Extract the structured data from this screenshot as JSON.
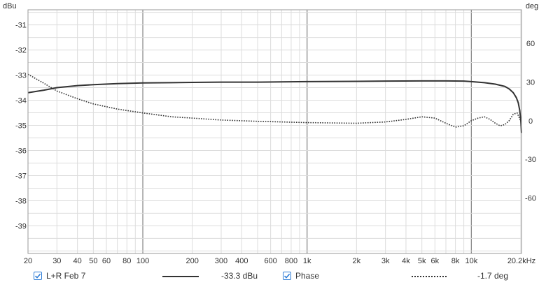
{
  "chart_data": {
    "type": "line",
    "xscale": "log",
    "xlim": [
      20,
      20200
    ],
    "x_ticks": [
      20,
      30,
      40,
      50,
      60,
      80,
      100,
      200,
      300,
      400,
      600,
      800,
      1000,
      2000,
      3000,
      4000,
      5000,
      6000,
      8000,
      10000,
      20200
    ],
    "x_tick_labels": [
      "20",
      "30",
      "40",
      "50",
      "60",
      "80",
      "100",
      "200",
      "300",
      "400",
      "600",
      "800",
      "1k",
      "2k",
      "3k",
      "4k",
      "5k",
      "6k",
      "8k",
      "10k",
      "20.2kHz"
    ],
    "y_left": {
      "label": "dBu",
      "ylim": [
        -40.1,
        -30.4
      ],
      "ticks": [
        -31,
        -32,
        -33,
        -34,
        -35,
        -36,
        -37,
        -38,
        -39
      ],
      "tick_labels": [
        "-31",
        "-32",
        "-33",
        "-34",
        "-35",
        "-36",
        "-37",
        "-38",
        "-39"
      ]
    },
    "y_right": {
      "label": "deg",
      "ylim": [
        -103,
        86
      ],
      "ticks": [
        60,
        30,
        0,
        -30,
        -60
      ],
      "tick_labels": [
        "60",
        "30",
        "0",
        "-30",
        "-60"
      ]
    },
    "grid": true,
    "series": [
      {
        "name": "L+R Feb 7",
        "axis": "left",
        "color": "#333333",
        "style": "solid",
        "x": [
          20,
          25,
          30,
          40,
          50,
          70,
          100,
          150,
          200,
          300,
          500,
          700,
          1000,
          2000,
          3000,
          5000,
          7000,
          9000,
          10000,
          12000,
          14000,
          16000,
          17000,
          18000,
          18800,
          19300,
          19700,
          20000,
          20200
        ],
        "y": [
          -33.7,
          -33.6,
          -33.5,
          -33.42,
          -33.38,
          -33.34,
          -33.31,
          -33.3,
          -33.29,
          -33.28,
          -33.28,
          -33.27,
          -33.26,
          -33.25,
          -33.24,
          -33.23,
          -33.23,
          -33.24,
          -33.26,
          -33.3,
          -33.36,
          -33.45,
          -33.55,
          -33.7,
          -33.9,
          -34.1,
          -34.4,
          -34.8,
          -35.3
        ]
      },
      {
        "name": "Phase",
        "axis": "right",
        "color": "#333333",
        "style": "dotted",
        "x": [
          20,
          25,
          30,
          40,
          50,
          70,
          100,
          150,
          200,
          300,
          500,
          1000,
          2000,
          3000,
          4000,
          5000,
          6000,
          7000,
          8000,
          9000,
          10000,
          11000,
          12000,
          13000,
          14000,
          15000,
          16000,
          17000,
          18000,
          19000,
          20200
        ],
        "y": [
          36,
          29,
          23,
          17,
          13,
          9,
          6,
          3,
          2,
          0.5,
          -0.5,
          -1.5,
          -2,
          -1,
          1,
          3,
          2,
          -2,
          -5,
          -4,
          0,
          2,
          3,
          1,
          -2,
          -4,
          -3,
          0,
          5,
          6,
          -1.7
        ]
      }
    ]
  },
  "legend": {
    "series1": {
      "label": "L+R Feb 7",
      "value": "-33.3 dBu",
      "checked": true
    },
    "series2": {
      "label": "Phase",
      "value": "-1.7 deg",
      "checked": true
    }
  },
  "colors": {
    "grid_minor": "#dcdcdc",
    "grid_major": "#808080",
    "frame": "#9a9a9a",
    "checkbox_accent": "#2b7bd6",
    "line": "#333333"
  }
}
